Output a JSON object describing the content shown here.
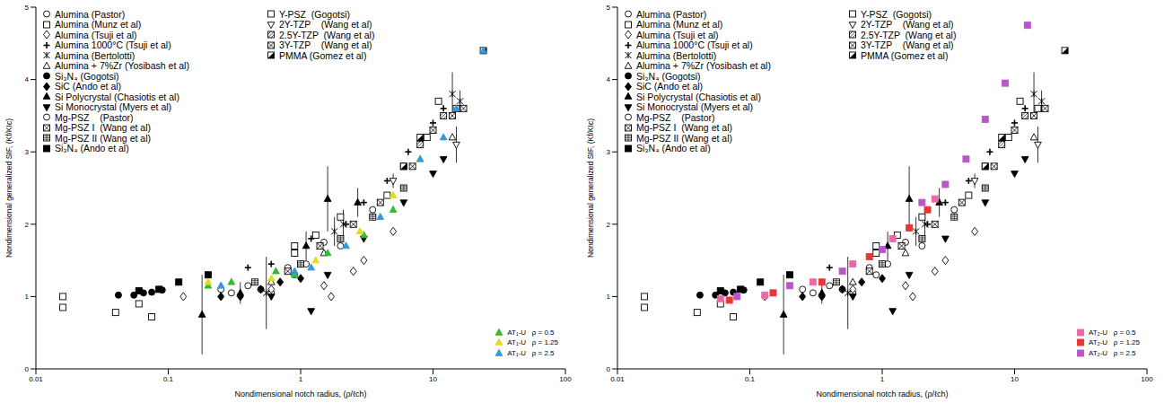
{
  "chart_data": [
    {
      "type": "scatter",
      "xlabel": "Nondimensional notch radius, (ρ/ℓch)",
      "ylabel": "Nondimensional generalized SIF, (Kf/KIc)",
      "xlim": [
        0.01,
        100
      ],
      "xticks": [
        0.01,
        0.1,
        1,
        10,
        100
      ],
      "ylim": [
        0,
        5
      ],
      "yticks": [
        0,
        1,
        2,
        3,
        4,
        5
      ],
      "log": "x",
      "grid": false,
      "legend": "upper left",
      "series": [
        {
          "name": "Alumina (Pastor)",
          "color": "#000000",
          "marker": "circle_open",
          "x": [
            0.3,
            0.5,
            0.6,
            0.9,
            1.1,
            2,
            3.5
          ],
          "values": [
            1.05,
            1.1,
            1.05,
            1.3,
            1.45,
            1.7,
            2.2
          ]
        },
        {
          "name": "Alumina (Munz et al)",
          "color": "#000000",
          "marker": "square_open",
          "x": [
            0.016,
            0.016,
            0.04,
            0.06,
            0.075,
            0.9,
            2
          ],
          "values": [
            0.85,
            1.0,
            0.78,
            0.9,
            0.72,
            1.7,
            2.1
          ]
        },
        {
          "name": "Alumina (Tsuji et al)",
          "color": "#000000",
          "marker": "diamond_open",
          "x": [
            0.13,
            0.6,
            1.5,
            1.7,
            2.5,
            3,
            5
          ],
          "values": [
            1.0,
            1.1,
            1.15,
            1.0,
            1.35,
            1.5,
            1.9
          ]
        },
        {
          "name": "Alumina 1000°C (Tsuji et al)",
          "color": "#000000",
          "marker": "plus",
          "x": [
            0.4,
            0.6,
            1.2,
            2.2,
            3,
            4.5,
            6.5,
            10,
            12
          ],
          "values": [
            1.4,
            1.45,
            1.8,
            2.0,
            2.3,
            2.6,
            3.0,
            3.4,
            3.6
          ]
        },
        {
          "name": "Alumina (Bertolotti)",
          "color": "#000000",
          "marker": "star",
          "x": [
            0.55,
            1.8,
            2.1,
            14,
            16
          ],
          "values": [
            1.05,
            1.9,
            2.0,
            3.8,
            3.7
          ],
          "errors": [
            0.5,
            0.2,
            0.2,
            0.3,
            0.15
          ]
        },
        {
          "name": "Alumina + 7%Zr (Yosibash et al)",
          "color": "#000000",
          "marker": "triangle_open",
          "x": [
            0.6,
            1.5,
            14
          ],
          "values": [
            1.2,
            1.6,
            3.2
          ]
        },
        {
          "name": "Si₃N₄ (Gogotsi)",
          "color": "#000000",
          "marker": "circle",
          "x": [
            0.042,
            0.055,
            0.065,
            0.075,
            0.09
          ],
          "values": [
            1.02,
            1.02,
            1.05,
            1.06,
            1.09
          ]
        },
        {
          "name": "SiC (Ando et al)",
          "color": "#000000",
          "marker": "diamond",
          "x": [
            0.25,
            0.35,
            0.5,
            0.7,
            1.0
          ],
          "values": [
            1.0,
            1.0,
            1.1,
            1.2,
            1.25
          ]
        },
        {
          "name": "Si Polycrystal (Chasiotis et al)",
          "color": "#000000",
          "marker": "triangle",
          "x": [
            0.18,
            0.35,
            1.1,
            1.6,
            2.7
          ],
          "values": [
            0.75,
            1.05,
            1.7,
            2.35,
            2.3
          ],
          "errors": [
            0.55,
            0.15,
            0.2,
            0.45,
            0.2
          ]
        },
        {
          "name": "Si Monocrystal (Myers et al)",
          "color": "#000000",
          "marker": "triangle_down",
          "x": [
            0.6,
            1.2,
            1.6,
            3,
            6,
            10,
            12
          ],
          "values": [
            1.0,
            0.8,
            1.3,
            1.8,
            2.3,
            2.7,
            2.9
          ]
        },
        {
          "name": "Mg-PSZ    (Pastor)",
          "color": "#000000",
          "marker": "circle_open",
          "x": [
            0.25,
            0.4,
            0.8,
            1.5
          ],
          "values": [
            1.1,
            1.15,
            1.4,
            1.75
          ]
        },
        {
          "name": "Mg-PSZ I  (Wang et al)",
          "color": "#000000",
          "marker": "square_x",
          "x": [
            0.8,
            1.4,
            2.5,
            4,
            7
          ],
          "values": [
            1.35,
            1.7,
            2.0,
            2.3,
            2.8
          ]
        },
        {
          "name": "Mg-PSZ II (Wang et al)",
          "color": "#000000",
          "marker": "square_grid",
          "x": [
            0.45,
            1.0,
            2.0,
            3.5,
            6
          ],
          "values": [
            1.2,
            1.45,
            1.8,
            2.1,
            2.5
          ]
        },
        {
          "name": "Si₃N₄ (Ando et al)",
          "color": "#000000",
          "marker": "square",
          "x": [
            0.06,
            0.085,
            0.12,
            0.2
          ],
          "values": [
            1.08,
            1.1,
            1.2,
            1.3
          ]
        },
        {
          "name": "Y-PSZ  (Gogotsi)",
          "color": "#000000",
          "marker": "square_open",
          "x": [
            0.9,
            1.3,
            4.5,
            9,
            11,
            15
          ],
          "values": [
            1.6,
            1.85,
            2.4,
            3.2,
            3.7,
            3.6
          ]
        },
        {
          "name": "2Y-TZP    (Wang et al)",
          "color": "#000000",
          "marker": "triangle_down_open",
          "x": [
            5,
            15
          ],
          "values": [
            2.6,
            3.1
          ],
          "errors": [
            0.1,
            0.25
          ]
        },
        {
          "name": "2.5Y-TZP  (Wang et al)",
          "color": "#000000",
          "marker": "square_slash",
          "x": [
            6,
            8,
            12
          ],
          "values": [
            2.8,
            3.1,
            3.5
          ]
        },
        {
          "name": "3Y-TZP    (Wang et al)",
          "color": "#000000",
          "marker": "square_x",
          "x": [
            10,
            14,
            17
          ],
          "values": [
            3.3,
            3.5,
            3.6
          ]
        },
        {
          "name": "PMMA (Gomez et al)",
          "color": "#000000",
          "marker": "square_half",
          "x": [
            6,
            8,
            24
          ],
          "values": [
            2.8,
            3.2,
            4.4
          ]
        },
        {
          "name": "AT₁-U   ρ = 0.5",
          "color": "#33bb33",
          "marker": "triangle",
          "x": [
            0.2,
            0.3,
            0.65,
            0.9,
            1.6,
            3,
            5
          ],
          "values": [
            1.15,
            1.2,
            1.35,
            1.3,
            1.6,
            1.85,
            2.2
          ]
        },
        {
          "name": "AT₁-U   ρ = 1.25",
          "color": "#dddd22",
          "marker": "triangle",
          "x": [
            0.2,
            0.6,
            1.3,
            2.8,
            5,
            8
          ],
          "values": [
            1.2,
            1.25,
            1.5,
            1.9,
            2.4,
            2.9
          ]
        },
        {
          "name": "AT₁-U   ρ = 2.5",
          "color": "#3399dd",
          "marker": "triangle",
          "x": [
            0.25,
            0.9,
            1.2,
            2.2,
            4,
            8,
            12,
            15,
            24
          ],
          "values": [
            1.15,
            1.35,
            1.4,
            1.7,
            2.1,
            2.9,
            3.2,
            3.6,
            4.4
          ]
        }
      ]
    },
    {
      "type": "scatter",
      "xlabel": "Nondimensional notch radius, (ρ/ℓch)",
      "ylabel": "Nondimensional generalized SIF, (Kf/KIc)",
      "xlim": [
        0.01,
        100
      ],
      "xticks": [
        0.01,
        0.1,
        1,
        10,
        100
      ],
      "ylim": [
        0,
        5
      ],
      "yticks": [
        0,
        1,
        2,
        3,
        4,
        5
      ],
      "log": "x",
      "grid": false,
      "legend": "upper left",
      "series": [
        {
          "name": "Alumina (Pastor)",
          "color": "#000000",
          "marker": "circle_open",
          "x": [
            0.3,
            0.5,
            0.6,
            0.9,
            1.1,
            2,
            3.5
          ],
          "values": [
            1.05,
            1.1,
            1.05,
            1.3,
            1.45,
            1.7,
            2.2
          ]
        },
        {
          "name": "Alumina (Munz et al)",
          "color": "#000000",
          "marker": "square_open",
          "x": [
            0.016,
            0.016,
            0.04,
            0.06,
            0.075,
            0.9,
            2
          ],
          "values": [
            0.85,
            1.0,
            0.78,
            0.9,
            0.72,
            1.7,
            2.1
          ]
        },
        {
          "name": "Alumina (Tsuji et al)",
          "color": "#000000",
          "marker": "diamond_open",
          "x": [
            0.13,
            0.6,
            1.5,
            1.7,
            2.5,
            3,
            5
          ],
          "values": [
            1.0,
            1.1,
            1.15,
            1.0,
            1.35,
            1.5,
            1.9
          ]
        },
        {
          "name": "Alumina 1000°C (Tsuji et al)",
          "color": "#000000",
          "marker": "plus",
          "x": [
            0.4,
            0.6,
            1.2,
            2.2,
            3,
            4.5,
            6.5,
            10,
            12
          ],
          "values": [
            1.4,
            1.45,
            1.8,
            2.0,
            2.3,
            2.6,
            3.0,
            3.4,
            3.6
          ]
        },
        {
          "name": "Alumina (Bertolotti)",
          "color": "#000000",
          "marker": "star",
          "x": [
            0.55,
            1.8,
            2.1,
            14,
            16
          ],
          "values": [
            1.05,
            1.9,
            2.0,
            3.8,
            3.7
          ],
          "errors": [
            0.5,
            0.2,
            0.2,
            0.3,
            0.15
          ]
        },
        {
          "name": "Alumina + 7%Zr (Yosibash et al)",
          "color": "#000000",
          "marker": "triangle_open",
          "x": [
            0.6,
            1.5,
            14
          ],
          "values": [
            1.2,
            1.6,
            3.2
          ]
        },
        {
          "name": "Si₃N₄ (Gogotsi)",
          "color": "#000000",
          "marker": "circle",
          "x": [
            0.042,
            0.055,
            0.065,
            0.075,
            0.09
          ],
          "values": [
            1.02,
            1.02,
            1.05,
            1.06,
            1.09
          ]
        },
        {
          "name": "SiC (Ando et al)",
          "color": "#000000",
          "marker": "diamond",
          "x": [
            0.25,
            0.35,
            0.5,
            0.7,
            1.0
          ],
          "values": [
            1.0,
            1.0,
            1.1,
            1.2,
            1.25
          ]
        },
        {
          "name": "Si Polycrystal (Chasiotis et al)",
          "color": "#000000",
          "marker": "triangle",
          "x": [
            0.18,
            0.35,
            1.1,
            1.6,
            2.7
          ],
          "values": [
            0.75,
            1.05,
            1.7,
            2.35,
            2.3
          ],
          "errors": [
            0.55,
            0.15,
            0.2,
            0.45,
            0.2
          ]
        },
        {
          "name": "Si Monocrystal (Myers et al)",
          "color": "#000000",
          "marker": "triangle_down",
          "x": [
            0.6,
            1.2,
            1.6,
            3,
            6,
            10,
            12
          ],
          "values": [
            1.0,
            0.8,
            1.3,
            1.8,
            2.3,
            2.7,
            2.9
          ]
        },
        {
          "name": "Mg-PSZ    (Pastor)",
          "color": "#000000",
          "marker": "circle_open",
          "x": [
            0.25,
            0.4,
            0.8,
            1.5
          ],
          "values": [
            1.1,
            1.15,
            1.4,
            1.75
          ]
        },
        {
          "name": "Mg-PSZ I  (Wang et al)",
          "color": "#000000",
          "marker": "square_x",
          "x": [
            0.8,
            1.4,
            2.5,
            4,
            7
          ],
          "values": [
            1.35,
            1.7,
            2.0,
            2.3,
            2.8
          ]
        },
        {
          "name": "Mg-PSZ II (Wang et al)",
          "color": "#000000",
          "marker": "square_grid",
          "x": [
            0.45,
            1.0,
            2.0,
            3.5,
            6
          ],
          "values": [
            1.2,
            1.45,
            1.8,
            2.1,
            2.5
          ]
        },
        {
          "name": "Si₃N₄ (Ando et al)",
          "color": "#000000",
          "marker": "square",
          "x": [
            0.06,
            0.085,
            0.12,
            0.2
          ],
          "values": [
            1.08,
            1.1,
            1.2,
            1.3
          ]
        },
        {
          "name": "Y-PSZ  (Gogotsi)",
          "color": "#000000",
          "marker": "square_open",
          "x": [
            0.9,
            1.3,
            4.5,
            9,
            11,
            15
          ],
          "values": [
            1.6,
            1.85,
            2.4,
            3.2,
            3.7,
            3.6
          ]
        },
        {
          "name": "2Y-TZP    (Wang et al)",
          "color": "#000000",
          "marker": "triangle_down_open",
          "x": [
            5,
            15
          ],
          "values": [
            2.6,
            3.1
          ],
          "errors": [
            0.1,
            0.25
          ]
        },
        {
          "name": "2.5Y-TZP  (Wang et al)",
          "color": "#000000",
          "marker": "square_slash",
          "x": [
            6,
            8,
            12
          ],
          "values": [
            2.8,
            3.1,
            3.5
          ]
        },
        {
          "name": "3Y-TZP    (Wang et al)",
          "color": "#000000",
          "marker": "square_x",
          "x": [
            10,
            14,
            17
          ],
          "values": [
            3.3,
            3.5,
            3.6
          ]
        },
        {
          "name": "PMMA (Gomez et al)",
          "color": "#000000",
          "marker": "square_half",
          "x": [
            6,
            8,
            24
          ],
          "values": [
            2.8,
            3.2,
            4.4
          ]
        },
        {
          "name": "AT₂-U   ρ = 0.5",
          "color": "#ee66aa",
          "marker": "square",
          "x": [
            0.06,
            0.13,
            0.3,
            0.6,
            1.2,
            2.5
          ],
          "values": [
            0.97,
            1.02,
            1.2,
            1.45,
            1.8,
            2.35
          ]
        },
        {
          "name": "AT₂-U   ρ = 1.25",
          "color": "#ee3333",
          "marker": "square",
          "x": [
            0.07,
            0.15,
            0.35,
            0.8,
            1.6,
            2.2
          ],
          "values": [
            0.95,
            1.05,
            1.2,
            1.55,
            1.95,
            2.2
          ]
        },
        {
          "name": "AT₂-U   ρ = 2.5",
          "color": "#bb55cc",
          "marker": "square",
          "x": [
            0.08,
            0.2,
            0.5,
            1.0,
            2.0,
            3,
            4.3,
            6,
            8.5,
            12.5
          ],
          "values": [
            1.0,
            1.15,
            1.35,
            1.65,
            2.3,
            2.55,
            2.9,
            3.45,
            3.95,
            4.75
          ]
        }
      ]
    }
  ]
}
